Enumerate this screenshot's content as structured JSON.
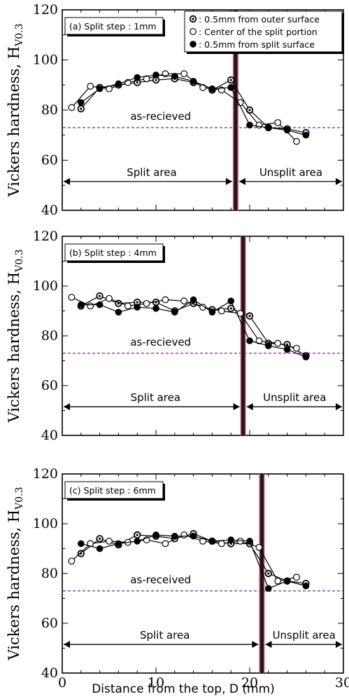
{
  "figure": {
    "x_title": "Distance from the top, D (mm)",
    "y_title_main": "Vickers hardness, H",
    "y_title_sub": "V0.3",
    "x_ticks": [
      "0",
      "10",
      "20",
      "30"
    ],
    "y_ticks": [
      "40",
      "60",
      "80",
      "100",
      "120"
    ]
  },
  "legend": {
    "items": [
      {
        "label": ": 0.5mm from outer surface",
        "marker": "dot-circle"
      },
      {
        "label": ": Center of the split portion",
        "marker": "open-circle"
      },
      {
        "label": ": 0.5mm from split surface",
        "marker": "filled-circle"
      }
    ]
  },
  "colors": {
    "split_line": "#d9577f",
    "reference_line": "#7a3fa0"
  },
  "chart_data": [
    {
      "type": "line",
      "panel_label": "(a) Split step : 1mm",
      "reference_label": "as-recieved",
      "reference_value": 73,
      "split_position": 18.5,
      "split_area_label": "Split area",
      "unsplit_area_label": "Unsplit area",
      "xlim": [
        0,
        30
      ],
      "ylim": [
        40,
        120
      ],
      "grid": false,
      "legend_position": "top-right",
      "series": [
        {
          "marker": "dot-circle",
          "x": [
            2,
            4,
            6,
            8,
            10,
            12,
            14,
            16,
            18,
            20,
            22,
            24,
            26
          ],
          "y": [
            80.5,
            89,
            90,
            91,
            92,
            92.5,
            91,
            88,
            92,
            80,
            73,
            72.5,
            71
          ]
        },
        {
          "marker": "open-circle",
          "x": [
            1,
            3,
            5,
            7,
            9,
            11,
            13,
            15,
            17,
            19,
            21,
            23,
            25
          ],
          "y": [
            81,
            89.5,
            88.5,
            91,
            92.5,
            94.5,
            94.5,
            89,
            88,
            83,
            74,
            75,
            67.5
          ]
        },
        {
          "marker": "filled-circle",
          "x": [
            2,
            4,
            6,
            8,
            10,
            12,
            14,
            16,
            18,
            20,
            22,
            24,
            26
          ],
          "y": [
            83,
            88.5,
            90.5,
            93,
            94,
            93.5,
            91.5,
            88.5,
            89,
            74,
            73,
            72,
            70
          ]
        }
      ]
    },
    {
      "type": "line",
      "panel_label": "(b) Split step : 4mm",
      "reference_label": "as-recieved",
      "reference_value": 73,
      "split_position": 19.3,
      "split_area_label": "Split area",
      "unsplit_area_label": "Unsplit area",
      "xlim": [
        0,
        30
      ],
      "ylim": [
        40,
        120
      ],
      "grid": false,
      "series": [
        {
          "marker": "dot-circle",
          "x": [
            2,
            4,
            6,
            8,
            10,
            12,
            14,
            16,
            18,
            20,
            22,
            24,
            26
          ],
          "y": [
            92,
            96,
            93,
            93.5,
            93.5,
            90,
            93,
            90.5,
            91,
            88,
            77,
            76.5,
            72
          ]
        },
        {
          "marker": "open-circle",
          "x": [
            1,
            3,
            5,
            7,
            9,
            11,
            13,
            15,
            17,
            19,
            21,
            23,
            25
          ],
          "y": [
            95.5,
            92,
            95,
            92,
            93,
            94.5,
            94,
            91.5,
            90,
            89,
            78,
            77,
            75
          ]
        },
        {
          "marker": "filled-circle",
          "x": [
            2,
            4,
            6,
            8,
            10,
            12,
            14,
            16,
            18,
            20,
            22,
            24,
            26
          ],
          "y": [
            92.5,
            92.5,
            89.5,
            91.5,
            91,
            89.5,
            94.5,
            89.5,
            94,
            78,
            76,
            74.5,
            71.5
          ]
        }
      ]
    },
    {
      "type": "line",
      "panel_label": "(c) Split step : 6mm",
      "reference_label": "as-received",
      "reference_value": 73,
      "split_position": 21.3,
      "split_area_label": "Split area",
      "unsplit_area_label": "Unsplit area",
      "xlim": [
        0,
        30
      ],
      "ylim": [
        40,
        120
      ],
      "grid": false,
      "series": [
        {
          "marker": "dot-circle",
          "x": [
            2,
            4,
            6,
            8,
            10,
            12,
            14,
            16,
            18,
            20,
            22,
            24,
            26
          ],
          "y": [
            88,
            94,
            91.5,
            95.5,
            95,
            94,
            96,
            93,
            92,
            92,
            80,
            77,
            76
          ]
        },
        {
          "marker": "open-circle",
          "x": [
            1,
            3,
            5,
            7,
            9,
            11,
            13,
            15,
            17,
            19,
            21,
            23,
            25
          ],
          "y": [
            85,
            92,
            93,
            92.5,
            93.5,
            92,
            95.5,
            93,
            92,
            93,
            90.5,
            77,
            78.5
          ]
        },
        {
          "marker": "filled-circle",
          "x": [
            2,
            4,
            6,
            8,
            10,
            12,
            14,
            16,
            18,
            20,
            22,
            24,
            26
          ],
          "y": [
            92,
            90,
            92,
            93,
            95.5,
            95,
            95,
            93,
            93.5,
            93,
            74,
            77,
            75
          ]
        }
      ]
    }
  ]
}
